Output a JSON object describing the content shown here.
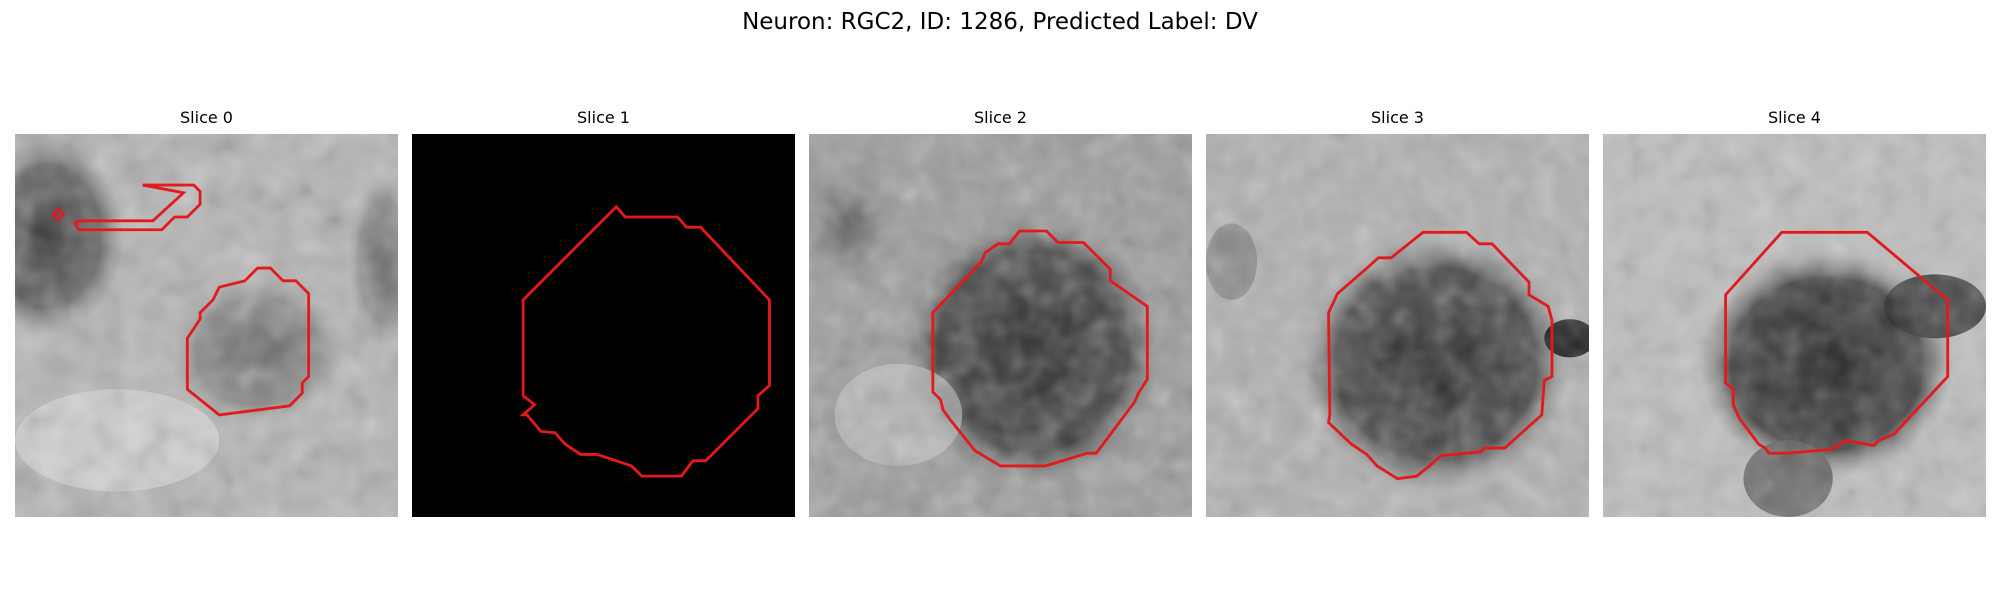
{
  "figure": {
    "title": "Neuron: RGC2, ID: 1286, Predicted Label: DV"
  },
  "panels": [
    {
      "title": "Slice 0",
      "background": "grayscale-microscopy",
      "contour_color": "#e31a1c"
    },
    {
      "title": "Slice 1",
      "background": "black",
      "contour_color": "#e31a1c"
    },
    {
      "title": "Slice 2",
      "background": "grayscale-microscopy",
      "contour_color": "#e31a1c"
    },
    {
      "title": "Slice 3",
      "background": "grayscale-microscopy",
      "contour_color": "#e31a1c"
    },
    {
      "title": "Slice 4",
      "background": "grayscale-microscopy",
      "contour_color": "#e31a1c"
    }
  ]
}
